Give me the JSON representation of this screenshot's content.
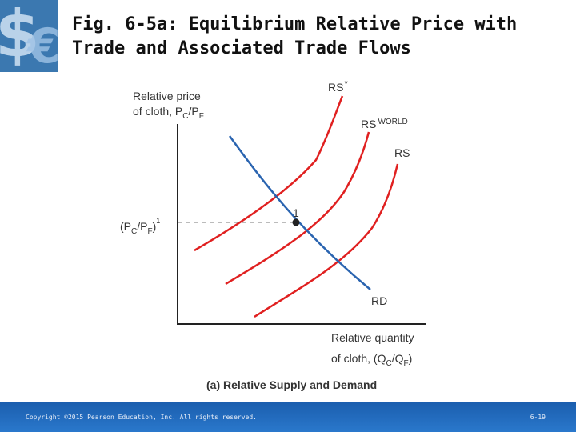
{
  "slide": {
    "title_line1": "Fig. 6-5a: Equilibrium Relative Price with",
    "title_line2": "Trade and Associated Trade Flows"
  },
  "logo": {
    "icon": "dollar-euro-currency-icon"
  },
  "figure": {
    "y_axis_label_line1": "Relative price",
    "y_axis_label_line2": "of cloth, P",
    "y_axis_label_sub1": "C",
    "y_axis_label_slash": "/P",
    "y_axis_label_sub2": "F",
    "x_axis_label_line1": "Relative quantity",
    "x_axis_label_line2": "of cloth, (Q",
    "x_axis_label_sub1": "C",
    "x_axis_label_slash": "/Q",
    "x_axis_label_sub2": "F",
    "x_axis_label_close": ")",
    "price_label_open": "(P",
    "price_label_sub1": "C",
    "price_label_slash": "/P",
    "price_label_sub2": "F",
    "price_label_close": ")",
    "price_label_superscript": "1",
    "equilibrium_point_label": "1",
    "curve_rs_star": "RS",
    "curve_rs_star_mark": "*",
    "curve_rs_world": "RS",
    "curve_rs_world_superscript": "WORLD",
    "curve_rs": "RS",
    "curve_rd": "RD",
    "caption": "(a) Relative Supply and Demand",
    "colors": {
      "supply": "#e02020",
      "demand": "#2a64b0",
      "axis": "#222222",
      "dashed": "#777777"
    }
  },
  "footer": {
    "copyright": "Copyright ©2015 Pearson Education, Inc. All rights reserved.",
    "page_number": "6-19"
  }
}
